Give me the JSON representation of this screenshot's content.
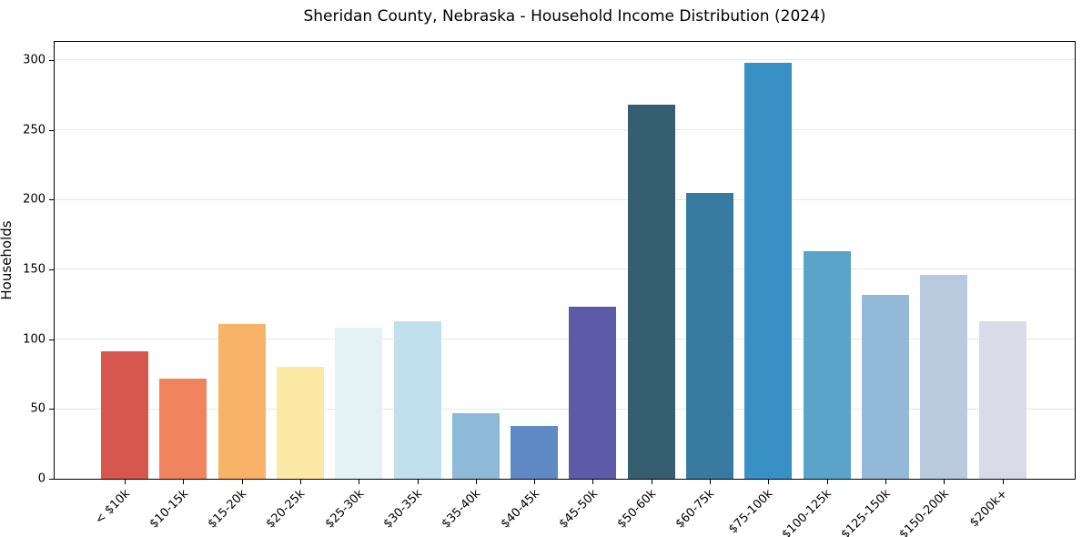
{
  "chart_data": {
    "type": "bar",
    "title": "Sheridan County, Nebraska - Household Income Distribution (2024)",
    "xlabel": "",
    "ylabel": "Households",
    "categories": [
      "< $10k",
      "$10-15k",
      "$15-20k",
      "$20-25k",
      "$25-30k",
      "$30-35k",
      "$35-40k",
      "$40-45k",
      "$45-50k",
      "$50-60k",
      "$60-75k",
      "$75-100k",
      "$100-125k",
      "$125-150k",
      "$150-200k",
      "$200k+"
    ],
    "values": [
      91,
      72,
      111,
      80,
      108,
      113,
      47,
      38,
      123,
      268,
      205,
      298,
      163,
      132,
      146,
      113
    ],
    "bar_colors": [
      "#d6574e",
      "#f0845f",
      "#f9b369",
      "#fde9a6",
      "#e4f1f5",
      "#bfe0ec",
      "#8dbad8",
      "#608ac5",
      "#5d5ba8",
      "#365e71",
      "#387aa0",
      "#3990c4",
      "#5aa4c9",
      "#93b9d8",
      "#b9cadf",
      "#d9dbe8"
    ],
    "yticks": [
      0,
      50,
      100,
      150,
      200,
      250,
      300
    ],
    "ylim": [
      0,
      313
    ],
    "grid": "horizontal-only",
    "gridline_color": "#e7e7e7",
    "legend": "none",
    "xtick_label_rotation_deg": 45,
    "plot_border": "boxed-black-spines",
    "background_color": "#ffffff"
  }
}
